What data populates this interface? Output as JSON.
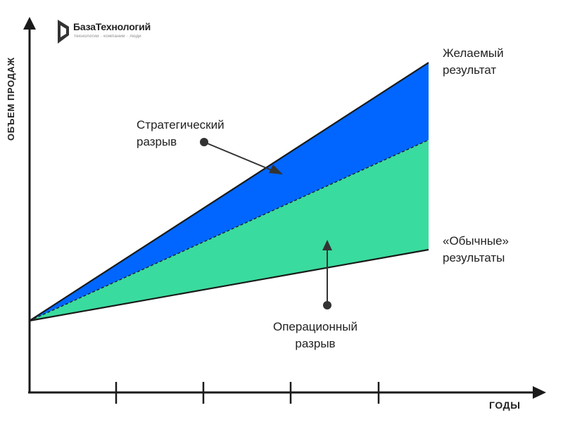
{
  "logo": {
    "name": "БазаТехнологий",
    "tagline": "технологии · компании · люди"
  },
  "axes": {
    "y_label": "ОБЪЕМ ПРОДАЖ",
    "x_label": "ГОДЫ"
  },
  "lines": {
    "desired": "Желаемый\nрезультат",
    "usual": "«Обычные»\nрезультаты"
  },
  "gaps": {
    "strategic": "Стратегический\nразрыв",
    "operational": "Операционный\nразрыв"
  },
  "colors": {
    "strategic_gap": "#0066FF",
    "operational_gap": "#3ADB9E",
    "axis": "#1A1A1A",
    "pointer": "#333333"
  }
}
